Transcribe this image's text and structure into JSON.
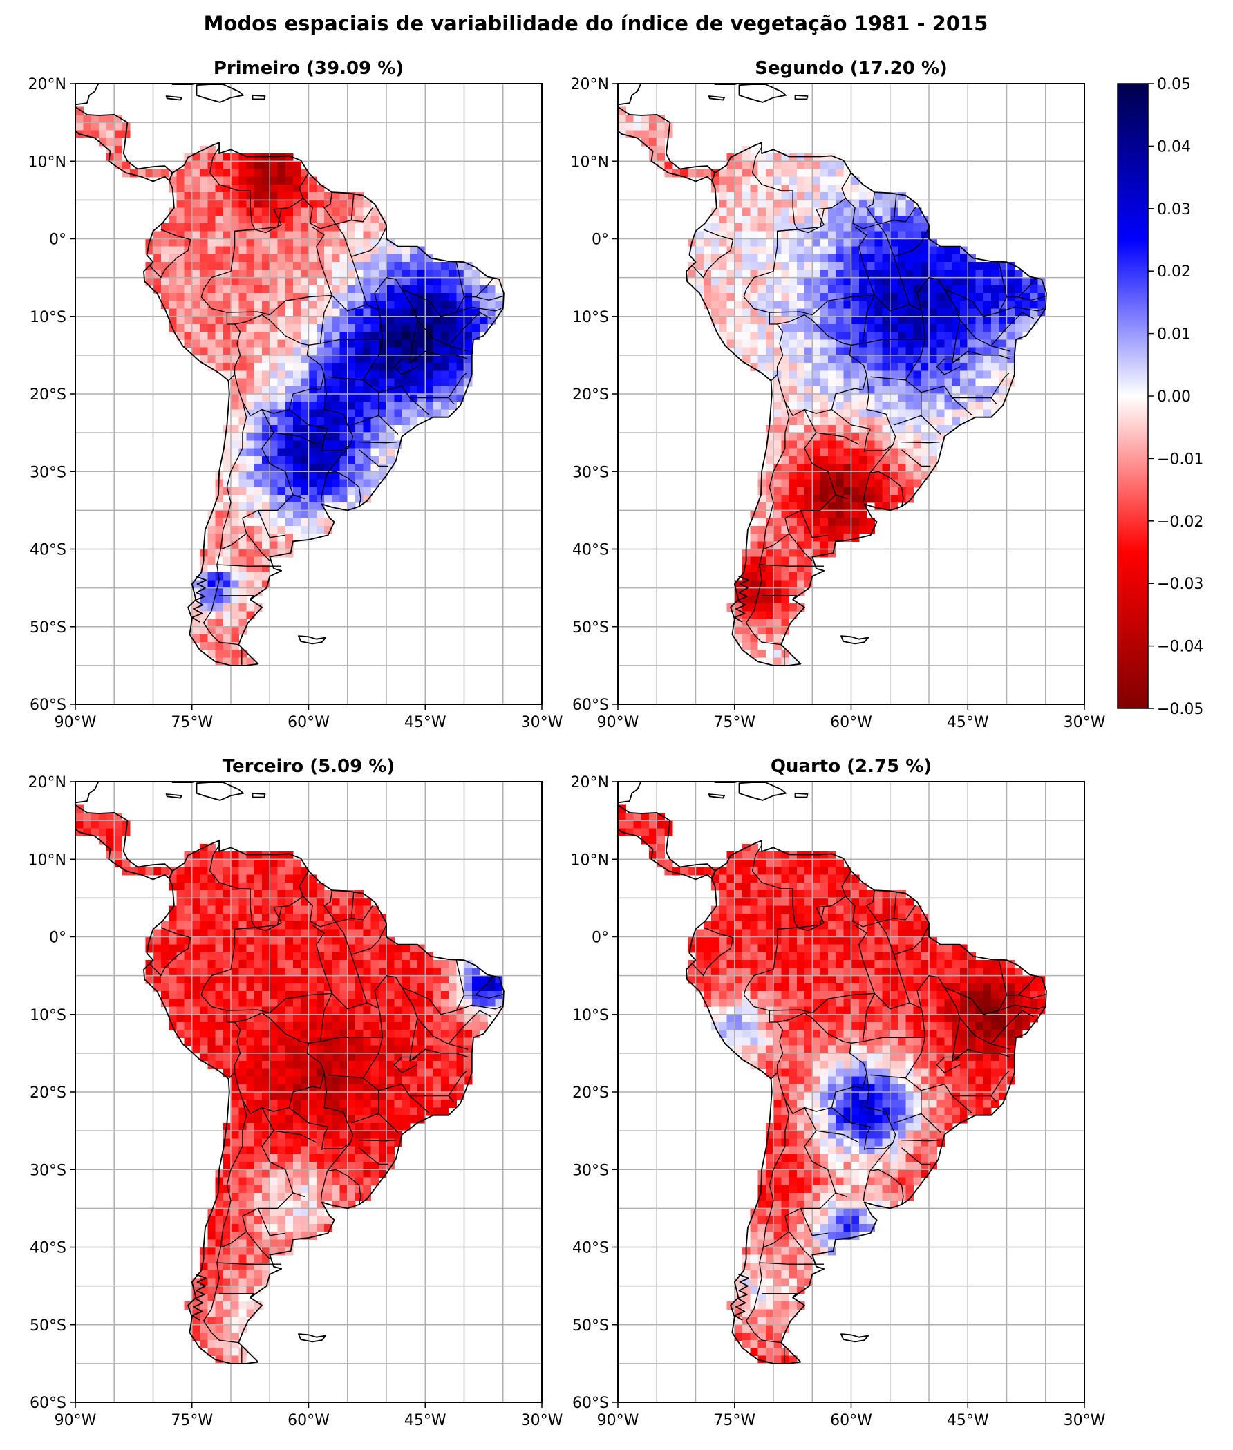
{
  "title": "Modos espaciais de variabilidade do índice de vegetação 1981 - 2015",
  "panels": [
    {
      "title": "Primeiro (39.09 %)",
      "mode": 1
    },
    {
      "title": "Segundo (17.20 %)",
      "mode": 2
    },
    {
      "title": "Terceiro (5.09 %)",
      "mode": 3
    },
    {
      "title": "Quarto (2.75 %)",
      "mode": 4
    }
  ],
  "map": {
    "lon_range": [
      -90,
      -30
    ],
    "lat_range": [
      -60,
      20
    ],
    "gridline_spacing_deg": 5,
    "lon_tick_labels": [
      "90°W",
      "75°W",
      "60°W",
      "45°W",
      "30°W"
    ],
    "lat_tick_labels": [
      "20°N",
      "10°N",
      "0°",
      "10°S",
      "20°S",
      "30°S",
      "40°S",
      "50°S",
      "60°S"
    ]
  },
  "colorbar": {
    "colormap": "seismic_r",
    "range": [
      -0.05,
      0.05
    ],
    "tick_labels": [
      "0.05",
      "0.04",
      "0.03",
      "0.02",
      "0.01",
      "0.00",
      "−0.01",
      "−0.02",
      "−0.03",
      "−0.04",
      "−0.05"
    ],
    "colors": {
      "max": "#00004c",
      "mid_high": "#0000ff",
      "zero": "#ffffff",
      "mid_low": "#ff0000",
      "min": "#800000"
    }
  }
}
